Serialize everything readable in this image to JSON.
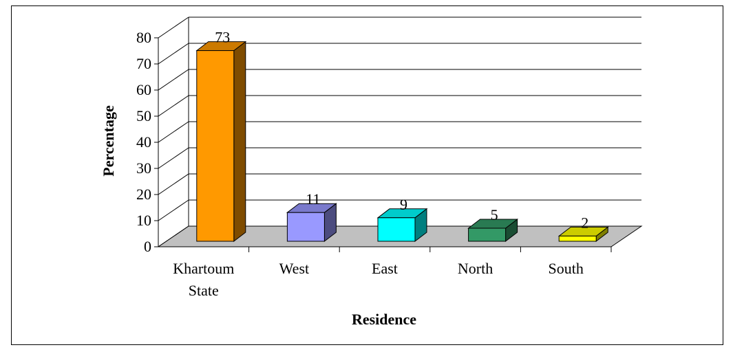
{
  "chart_data": {
    "type": "bar",
    "title": "",
    "xlabel": "Residence",
    "ylabel": "Percentage",
    "ylim": [
      0,
      80
    ],
    "yticks": [
      0,
      10,
      20,
      30,
      40,
      50,
      60,
      70,
      80
    ],
    "categories": [
      {
        "line1": "Khartoum",
        "line2": "State"
      },
      {
        "line1": "West",
        "line2": ""
      },
      {
        "line1": "East",
        "line2": ""
      },
      {
        "line1": "North",
        "line2": ""
      },
      {
        "line1": "South",
        "line2": ""
      }
    ],
    "values": [
      73,
      11,
      9,
      5,
      2
    ],
    "value_labels": [
      "73",
      "11",
      "9",
      "5",
      "2"
    ],
    "bar_colors": [
      "#FF9900",
      "#9999FF",
      "#00FFFF",
      "#339966",
      "#FFFF00"
    ],
    "bar_side_colors": [
      "#7F4C00",
      "#4C4C7F",
      "#007F7F",
      "#1A4D33",
      "#7F7F00"
    ],
    "bar_top_colors": [
      "#CC7A00",
      "#7A7ACC",
      "#00CCCC",
      "#297A52",
      "#CCCC00"
    ],
    "grid": true,
    "floor_color": "#C0C0C0"
  }
}
